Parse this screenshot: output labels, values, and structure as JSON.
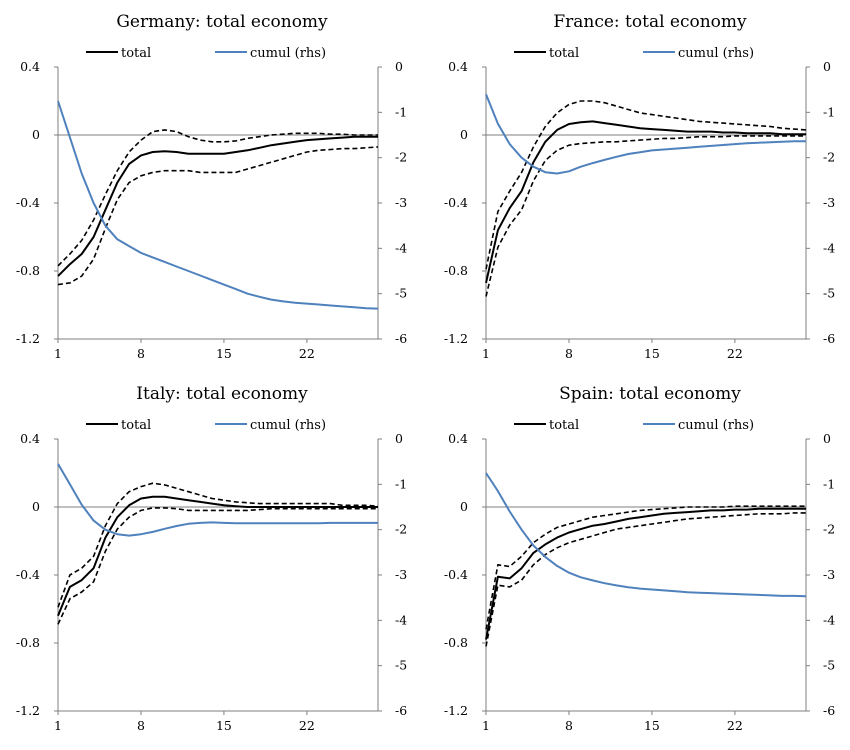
{
  "colors": {
    "total": "#000000",
    "band": "#000000",
    "cumul": "#4f81bd",
    "axis": "#7f7f7f"
  },
  "chart_data": [
    {
      "type": "line",
      "title": "Germany: total economy",
      "legend": {
        "placement": "top",
        "total_label": "total",
        "cumul_label": "cumul (rhs)"
      },
      "x": [
        1,
        2,
        3,
        4,
        5,
        6,
        7,
        8,
        9,
        10,
        11,
        12,
        13,
        14,
        15,
        16,
        17,
        18,
        19,
        20,
        21,
        22,
        23,
        24,
        25,
        26,
        27,
        28
      ],
      "xticks": [
        "1",
        "8",
        "15",
        "22"
      ],
      "y_left": {
        "lim": [
          -1.2,
          0.4
        ],
        "ticks": [
          "0.4",
          "0",
          "-0.4",
          "-0.8",
          "-1.2"
        ]
      },
      "y_right": {
        "lim": [
          -6,
          0
        ],
        "ticks": [
          "0",
          "-1",
          "-2",
          "-3",
          "-4",
          "-5",
          "-6"
        ]
      },
      "series": [
        {
          "name": "total",
          "axis": "left",
          "style": "solid",
          "values": [
            -0.83,
            -0.76,
            -0.7,
            -0.6,
            -0.44,
            -0.28,
            -0.17,
            -0.12,
            -0.1,
            -0.095,
            -0.1,
            -0.11,
            -0.11,
            -0.11,
            -0.11,
            -0.1,
            -0.09,
            -0.075,
            -0.06,
            -0.05,
            -0.04,
            -0.03,
            -0.025,
            -0.02,
            -0.015,
            -0.01,
            -0.01,
            -0.01
          ]
        },
        {
          "style": "dashed",
          "axis": "left",
          "values": [
            -0.77,
            -0.7,
            -0.62,
            -0.5,
            -0.35,
            -0.21,
            -0.1,
            -0.03,
            0.02,
            0.03,
            0.02,
            -0.01,
            -0.03,
            -0.04,
            -0.04,
            -0.035,
            -0.02,
            -0.01,
            0.0,
            0.005,
            0.01,
            0.01,
            0.01,
            0.005,
            0.005,
            0.0,
            0.0,
            0.0
          ]
        },
        {
          "style": "dashed",
          "axis": "left",
          "values": [
            -0.88,
            -0.87,
            -0.83,
            -0.73,
            -0.55,
            -0.38,
            -0.28,
            -0.24,
            -0.22,
            -0.21,
            -0.21,
            -0.21,
            -0.22,
            -0.22,
            -0.22,
            -0.22,
            -0.2,
            -0.18,
            -0.16,
            -0.14,
            -0.12,
            -0.1,
            -0.09,
            -0.085,
            -0.08,
            -0.08,
            -0.075,
            -0.07
          ]
        },
        {
          "name": "cumul (rhs)",
          "axis": "right",
          "style": "solid",
          "values": [
            -0.75,
            -1.55,
            -2.35,
            -3.0,
            -3.5,
            -3.8,
            -3.95,
            -4.1,
            -4.2,
            -4.3,
            -4.4,
            -4.5,
            -4.6,
            -4.7,
            -4.8,
            -4.9,
            -5.0,
            -5.07,
            -5.13,
            -5.17,
            -5.2,
            -5.22,
            -5.24,
            -5.26,
            -5.28,
            -5.3,
            -5.32,
            -5.33
          ]
        }
      ]
    },
    {
      "type": "line",
      "title": "France: total economy",
      "legend": {
        "placement": "top",
        "total_label": "total",
        "cumul_label": "cumul (rhs)"
      },
      "x": [
        1,
        2,
        3,
        4,
        5,
        6,
        7,
        8,
        9,
        10,
        11,
        12,
        13,
        14,
        15,
        16,
        17,
        18,
        19,
        20,
        21,
        22,
        23,
        24,
        25,
        26,
        27,
        28
      ],
      "xticks": [
        "1",
        "8",
        "15",
        "22"
      ],
      "y_left": {
        "lim": [
          -1.2,
          0.4
        ],
        "ticks": [
          "0.4",
          "0",
          "-0.4",
          "-0.8",
          "-1.2"
        ]
      },
      "y_right": {
        "lim": [
          -6,
          0
        ],
        "ticks": [
          "0",
          "-1",
          "-2",
          "-3",
          "-4",
          "-5",
          "-6"
        ]
      },
      "series": [
        {
          "name": "total",
          "axis": "left",
          "style": "solid",
          "values": [
            -0.87,
            -0.56,
            -0.43,
            -0.33,
            -0.16,
            -0.04,
            0.03,
            0.065,
            0.075,
            0.08,
            0.07,
            0.06,
            0.05,
            0.04,
            0.035,
            0.03,
            0.025,
            0.02,
            0.02,
            0.02,
            0.015,
            0.015,
            0.01,
            0.01,
            0.01,
            0.005,
            0.005,
            0.005
          ]
        },
        {
          "style": "dashed",
          "axis": "left",
          "values": [
            -0.79,
            -0.45,
            -0.33,
            -0.22,
            -0.07,
            0.05,
            0.13,
            0.18,
            0.2,
            0.2,
            0.19,
            0.17,
            0.15,
            0.13,
            0.12,
            0.11,
            0.1,
            0.09,
            0.08,
            0.075,
            0.07,
            0.065,
            0.06,
            0.055,
            0.05,
            0.04,
            0.035,
            0.03
          ]
        },
        {
          "style": "dashed",
          "axis": "left",
          "values": [
            -0.95,
            -0.66,
            -0.53,
            -0.44,
            -0.27,
            -0.15,
            -0.09,
            -0.06,
            -0.05,
            -0.045,
            -0.04,
            -0.04,
            -0.035,
            -0.03,
            -0.025,
            -0.02,
            -0.02,
            -0.015,
            -0.01,
            -0.01,
            -0.01,
            -0.005,
            -0.005,
            -0.005,
            -0.005,
            -0.005,
            -0.005,
            -0.005
          ]
        },
        {
          "name": "cumul (rhs)",
          "axis": "right",
          "style": "solid",
          "values": [
            -0.6,
            -1.25,
            -1.7,
            -2.0,
            -2.2,
            -2.32,
            -2.35,
            -2.3,
            -2.2,
            -2.12,
            -2.05,
            -1.98,
            -1.92,
            -1.88,
            -1.84,
            -1.82,
            -1.8,
            -1.78,
            -1.76,
            -1.74,
            -1.72,
            -1.7,
            -1.68,
            -1.67,
            -1.66,
            -1.65,
            -1.64,
            -1.64
          ]
        }
      ]
    },
    {
      "type": "line",
      "title": "Italy: total economy",
      "legend": {
        "placement": "top",
        "total_label": "total",
        "cumul_label": "cumul (rhs)"
      },
      "x": [
        1,
        2,
        3,
        4,
        5,
        6,
        7,
        8,
        9,
        10,
        11,
        12,
        13,
        14,
        15,
        16,
        17,
        18,
        19,
        20,
        21,
        22,
        23,
        24,
        25,
        26,
        27,
        28
      ],
      "xticks": [
        "1",
        "8",
        "15",
        "22"
      ],
      "y_left": {
        "lim": [
          -1.2,
          0.4
        ],
        "ticks": [
          "0.4",
          "0",
          "-0.4",
          "-0.8",
          "-1.2"
        ]
      },
      "y_right": {
        "lim": [
          -6,
          0
        ],
        "ticks": [
          "0",
          "-1",
          "-2",
          "-3",
          "-4",
          "-5",
          "-6"
        ]
      },
      "series": [
        {
          "name": "total",
          "axis": "left",
          "style": "solid",
          "values": [
            -0.64,
            -0.47,
            -0.43,
            -0.36,
            -0.18,
            -0.06,
            0.01,
            0.05,
            0.06,
            0.06,
            0.05,
            0.04,
            0.03,
            0.02,
            0.01,
            0.005,
            0.0,
            0.0,
            0.0,
            0.0,
            0.0,
            0.0,
            0.0,
            0.0,
            0.0,
            0.0,
            0.0,
            0.0
          ]
        },
        {
          "style": "dashed",
          "axis": "left",
          "values": [
            -0.59,
            -0.4,
            -0.36,
            -0.29,
            -0.11,
            0.02,
            0.09,
            0.12,
            0.14,
            0.13,
            0.11,
            0.09,
            0.07,
            0.05,
            0.04,
            0.03,
            0.025,
            0.02,
            0.02,
            0.02,
            0.02,
            0.02,
            0.02,
            0.02,
            0.01,
            0.01,
            0.01,
            0.005
          ]
        },
        {
          "style": "dashed",
          "axis": "left",
          "values": [
            -0.69,
            -0.54,
            -0.5,
            -0.44,
            -0.26,
            -0.13,
            -0.06,
            -0.02,
            -0.005,
            -0.005,
            -0.01,
            -0.02,
            -0.02,
            -0.02,
            -0.02,
            -0.02,
            -0.02,
            -0.015,
            -0.01,
            -0.01,
            -0.01,
            -0.01,
            -0.01,
            -0.01,
            -0.01,
            -0.01,
            -0.01,
            -0.01
          ]
        },
        {
          "name": "cumul (rhs)",
          "axis": "right",
          "style": "solid",
          "values": [
            -0.55,
            -1.0,
            -1.45,
            -1.8,
            -2.0,
            -2.1,
            -2.13,
            -2.1,
            -2.05,
            -1.98,
            -1.92,
            -1.87,
            -1.85,
            -1.84,
            -1.85,
            -1.86,
            -1.86,
            -1.86,
            -1.86,
            -1.86,
            -1.86,
            -1.86,
            -1.86,
            -1.85,
            -1.85,
            -1.85,
            -1.85,
            -1.85
          ]
        }
      ]
    },
    {
      "type": "line",
      "title": "Spain: total economy",
      "legend": {
        "placement": "top",
        "total_label": "total",
        "cumul_label": "cumul (rhs)"
      },
      "x": [
        1,
        2,
        3,
        4,
        5,
        6,
        7,
        8,
        9,
        10,
        11,
        12,
        13,
        14,
        15,
        16,
        17,
        18,
        19,
        20,
        21,
        22,
        23,
        24,
        25,
        26,
        27,
        28
      ],
      "xticks": [
        "1",
        "8",
        "15",
        "22"
      ],
      "y_left": {
        "lim": [
          -1.2,
          0.4
        ],
        "ticks": [
          "0.4",
          "0",
          "-0.4",
          "-0.8",
          "-1.2"
        ]
      },
      "y_right": {
        "lim": [
          -6,
          0
        ],
        "ticks": [
          "0",
          "-1",
          "-2",
          "-3",
          "-4",
          "-5",
          "-6"
        ]
      },
      "series": [
        {
          "name": "total",
          "axis": "left",
          "style": "solid",
          "values": [
            -0.78,
            -0.41,
            -0.42,
            -0.36,
            -0.27,
            -0.22,
            -0.18,
            -0.15,
            -0.13,
            -0.11,
            -0.1,
            -0.085,
            -0.07,
            -0.06,
            -0.05,
            -0.04,
            -0.035,
            -0.03,
            -0.025,
            -0.02,
            -0.02,
            -0.015,
            -0.015,
            -0.01,
            -0.01,
            -0.01,
            -0.01,
            -0.01
          ]
        },
        {
          "style": "dashed",
          "axis": "left",
          "values": [
            -0.72,
            -0.34,
            -0.35,
            -0.29,
            -0.21,
            -0.16,
            -0.12,
            -0.1,
            -0.08,
            -0.06,
            -0.05,
            -0.04,
            -0.03,
            -0.02,
            -0.015,
            -0.01,
            -0.005,
            0.0,
            0.0,
            0.0,
            0.0,
            0.005,
            0.005,
            0.005,
            0.005,
            0.005,
            0.005,
            0.005
          ]
        },
        {
          "style": "dashed",
          "axis": "left",
          "values": [
            -0.82,
            -0.46,
            -0.47,
            -0.43,
            -0.34,
            -0.28,
            -0.24,
            -0.21,
            -0.19,
            -0.17,
            -0.15,
            -0.13,
            -0.12,
            -0.11,
            -0.1,
            -0.09,
            -0.08,
            -0.07,
            -0.065,
            -0.06,
            -0.055,
            -0.05,
            -0.045,
            -0.04,
            -0.04,
            -0.04,
            -0.035,
            -0.035
          ]
        },
        {
          "name": "cumul (rhs)",
          "axis": "right",
          "style": "solid",
          "values": [
            -0.75,
            -1.15,
            -1.6,
            -2.0,
            -2.35,
            -2.6,
            -2.8,
            -2.95,
            -3.05,
            -3.12,
            -3.18,
            -3.23,
            -3.27,
            -3.3,
            -3.32,
            -3.34,
            -3.36,
            -3.38,
            -3.39,
            -3.4,
            -3.41,
            -3.42,
            -3.43,
            -3.44,
            -3.45,
            -3.46,
            -3.46,
            -3.47
          ]
        }
      ]
    }
  ]
}
